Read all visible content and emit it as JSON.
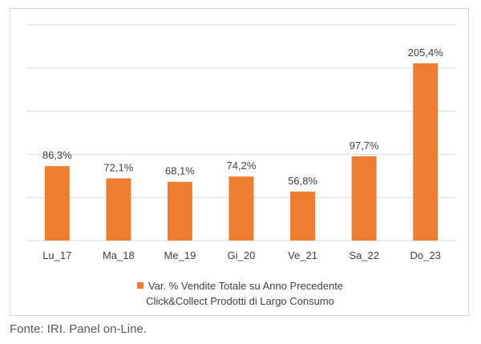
{
  "chart_data": {
    "type": "bar",
    "categories": [
      "Lu_17",
      "Ma_18",
      "Me_19",
      "Gi_20",
      "Ve_21",
      "Sa_22",
      "Do_23"
    ],
    "values": [
      86.3,
      72.1,
      68.1,
      74.2,
      56.8,
      97.7,
      205.4
    ],
    "data_labels": [
      "86,3%",
      "72,1%",
      "68,1%",
      "74,2%",
      "56,8%",
      "97,7%",
      "205,4%"
    ],
    "series": [
      {
        "name": "Var. % Vendite Totale su Anno Precedente Click&Collect Prodotti di Largo Consumo",
        "values": [
          86.3,
          72.1,
          68.1,
          74.2,
          56.8,
          97.7,
          205.4
        ]
      }
    ],
    "ylim": [
      0,
      250
    ],
    "y_gridlines": [
      0,
      50,
      100,
      150,
      200,
      250
    ],
    "grid": true,
    "legend_position": "bottom",
    "title": "",
    "xlabel": "",
    "ylabel": ""
  },
  "legend": {
    "line1": "Var. % Vendite Totale su Anno Precedente",
    "line2": "Click&Collect Prodotti di Largo Consumo"
  },
  "colors": {
    "bar": "#ed7d31",
    "grid": "#d9d9d9",
    "text": "#404040"
  },
  "footer": {
    "source": "Fonte: IRI. Panel on-Line."
  }
}
